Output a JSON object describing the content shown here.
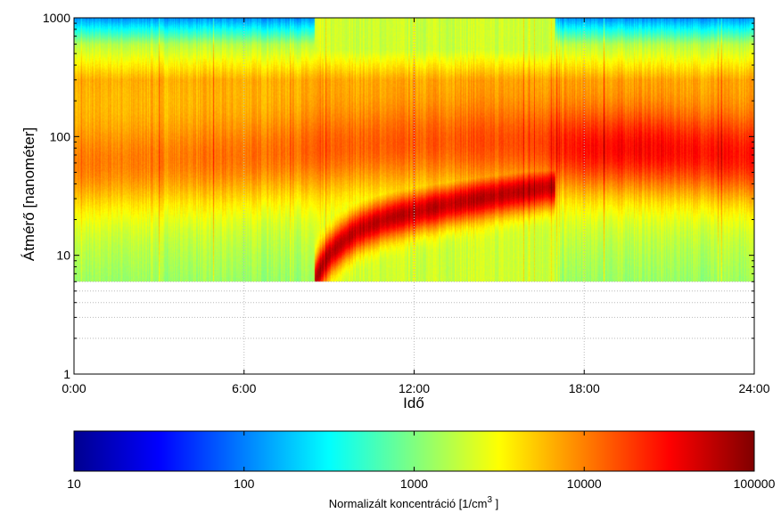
{
  "chart_data": {
    "type": "heatmap",
    "title": "",
    "xlabel": "Idő",
    "ylabel": "Átmérő [nanométer]",
    "xlim": [
      0,
      24
    ],
    "x_unit": "hours",
    "x_ticks": [
      0,
      6,
      12,
      18,
      24
    ],
    "x_tick_labels": [
      "0:00",
      "6:00",
      "12:00",
      "18:00",
      "24:00"
    ],
    "y_scale": "log",
    "ylim": [
      1,
      1000
    ],
    "y_ticks": [
      1,
      10,
      100,
      1000
    ],
    "y_tick_labels": [
      "1",
      "10",
      "100",
      "1000"
    ],
    "data_y_min": 6,
    "data_y_max": 1000,
    "grid": true,
    "colormap": "jet",
    "colorbar": {
      "label": "Normalizált koncentráció [1/cm",
      "label_superscript": "3",
      "label_suffix": " ]",
      "scale": "log",
      "range": [
        10,
        100000
      ],
      "ticks": [
        10,
        100,
        1000,
        10000,
        100000
      ],
      "tick_labels": [
        "10",
        "100",
        "1000",
        "10000",
        "100000"
      ],
      "placement": "bottom"
    },
    "bands": [
      {
        "hour": 0,
        "d_peak": 60,
        "level": 4.0
      },
      {
        "hour": 3,
        "d_peak": 65,
        "level": 4.0
      },
      {
        "hour": 6,
        "d_peak": 70,
        "level": 4.05
      },
      {
        "hour": 8.5,
        "d_peak": 80,
        "level": 4.1
      },
      {
        "hour": 12,
        "d_peak": 90,
        "level": 4.15
      },
      {
        "hour": 16,
        "d_peak": 90,
        "level": 4.2
      },
      {
        "hour": 18,
        "d_peak": 80,
        "level": 4.45
      },
      {
        "hour": 20,
        "d_peak": 80,
        "level": 4.5
      },
      {
        "hour": 24,
        "d_peak": 70,
        "level": 4.4
      }
    ],
    "new_particle_event": {
      "start_hour": 8.5,
      "end_hour": 17,
      "diameter_path": [
        {
          "hour": 8.5,
          "d": 6
        },
        {
          "hour": 9,
          "d": 10
        },
        {
          "hour": 10,
          "d": 16
        },
        {
          "hour": 11,
          "d": 20
        },
        {
          "hour": 12,
          "d": 23
        },
        {
          "hour": 13,
          "d": 26
        },
        {
          "hour": 14,
          "d": 29
        },
        {
          "hour": 15,
          "d": 32
        },
        {
          "hour": 16,
          "d": 35
        },
        {
          "hour": 17,
          "d": 38
        }
      ],
      "peak_level": 4.75
    },
    "background_levels": {
      "d_6": 3.1,
      "d_20": 3.3,
      "d_300": 3.8,
      "d_600": 3.2,
      "d_1000": 2.05
    }
  }
}
